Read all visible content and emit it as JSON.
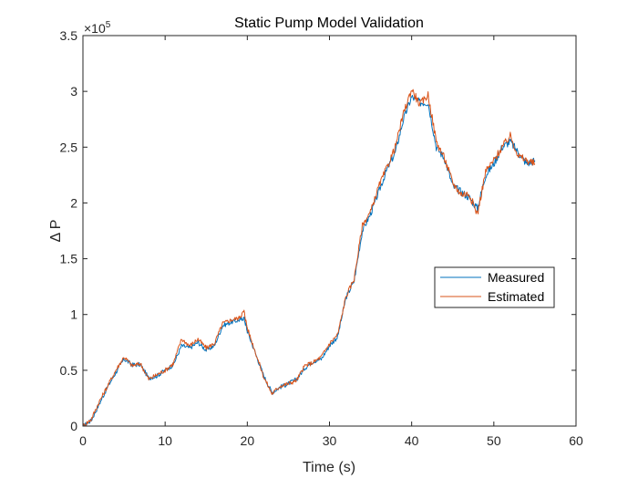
{
  "chart_data": {
    "type": "line",
    "title": "Static Pump Model Validation",
    "xlabel": "Time (s)",
    "ylabel": "Δ P",
    "y_exponent_label": "×10",
    "y_exponent_power": "5",
    "xlim": [
      0,
      60
    ],
    "ylim": [
      0,
      3.5
    ],
    "x_ticks": [
      0,
      10,
      20,
      30,
      40,
      50,
      60
    ],
    "x_tick_labels": [
      "0",
      "10",
      "20",
      "30",
      "40",
      "50",
      "60"
    ],
    "y_ticks": [
      0,
      0.5,
      1,
      1.5,
      2,
      2.5,
      3,
      3.5
    ],
    "y_tick_labels": [
      "0",
      "0.5",
      "1",
      "1.5",
      "2",
      "2.5",
      "3",
      "3.5"
    ],
    "y_scale_factor": 100000,
    "grid": false,
    "legend_position": "right",
    "series": [
      {
        "name": "Measured",
        "color": "#0072BD",
        "x": [
          0,
          1,
          2,
          3,
          4,
          5,
          6,
          7,
          8,
          9,
          10,
          11,
          12,
          13,
          14,
          15,
          16,
          17,
          18,
          19,
          19.6,
          20,
          21,
          22,
          23,
          24,
          25,
          26,
          27,
          28,
          29,
          30,
          31,
          32,
          33,
          34,
          35,
          36,
          37,
          38,
          39,
          40,
          41,
          42,
          43,
          44,
          45,
          46,
          47,
          48,
          49,
          50,
          51,
          52,
          53,
          54,
          55
        ],
        "y": [
          0,
          0.05,
          0.2,
          0.35,
          0.48,
          0.6,
          0.55,
          0.55,
          0.43,
          0.45,
          0.5,
          0.55,
          0.72,
          0.7,
          0.75,
          0.68,
          0.72,
          0.9,
          0.93,
          0.95,
          0.97,
          0.85,
          0.65,
          0.45,
          0.3,
          0.35,
          0.38,
          0.42,
          0.52,
          0.58,
          0.6,
          0.72,
          0.8,
          1.15,
          1.3,
          1.75,
          1.9,
          2.1,
          2.3,
          2.45,
          2.75,
          2.95,
          2.9,
          2.9,
          2.5,
          2.4,
          2.15,
          2.1,
          2.05,
          1.95,
          2.25,
          2.35,
          2.5,
          2.55,
          2.45,
          2.35,
          2.38
        ]
      },
      {
        "name": "Estimated",
        "color": "#D95319",
        "x": [
          0,
          1,
          2,
          3,
          4,
          5,
          6,
          7,
          8,
          9,
          10,
          11,
          12,
          13,
          14,
          15,
          16,
          17,
          18,
          19,
          19.6,
          20,
          21,
          22,
          23,
          24,
          25,
          26,
          27,
          28,
          29,
          30,
          31,
          32,
          33,
          34,
          35,
          36,
          37,
          38,
          39,
          40,
          41,
          42,
          43,
          44,
          45,
          46,
          47,
          48,
          49,
          50,
          51,
          52,
          53,
          54,
          55
        ],
        "y": [
          0,
          0.06,
          0.22,
          0.36,
          0.5,
          0.62,
          0.54,
          0.56,
          0.42,
          0.46,
          0.5,
          0.56,
          0.78,
          0.72,
          0.78,
          0.7,
          0.74,
          0.92,
          0.95,
          0.97,
          1.03,
          0.88,
          0.66,
          0.44,
          0.29,
          0.36,
          0.38,
          0.41,
          0.54,
          0.57,
          0.62,
          0.74,
          0.82,
          1.16,
          1.32,
          1.8,
          1.92,
          2.15,
          2.32,
          2.5,
          2.8,
          3.02,
          2.88,
          2.97,
          2.55,
          2.4,
          2.18,
          2.08,
          2.08,
          1.9,
          2.28,
          2.38,
          2.5,
          2.6,
          2.42,
          2.38,
          2.35
        ]
      }
    ]
  }
}
